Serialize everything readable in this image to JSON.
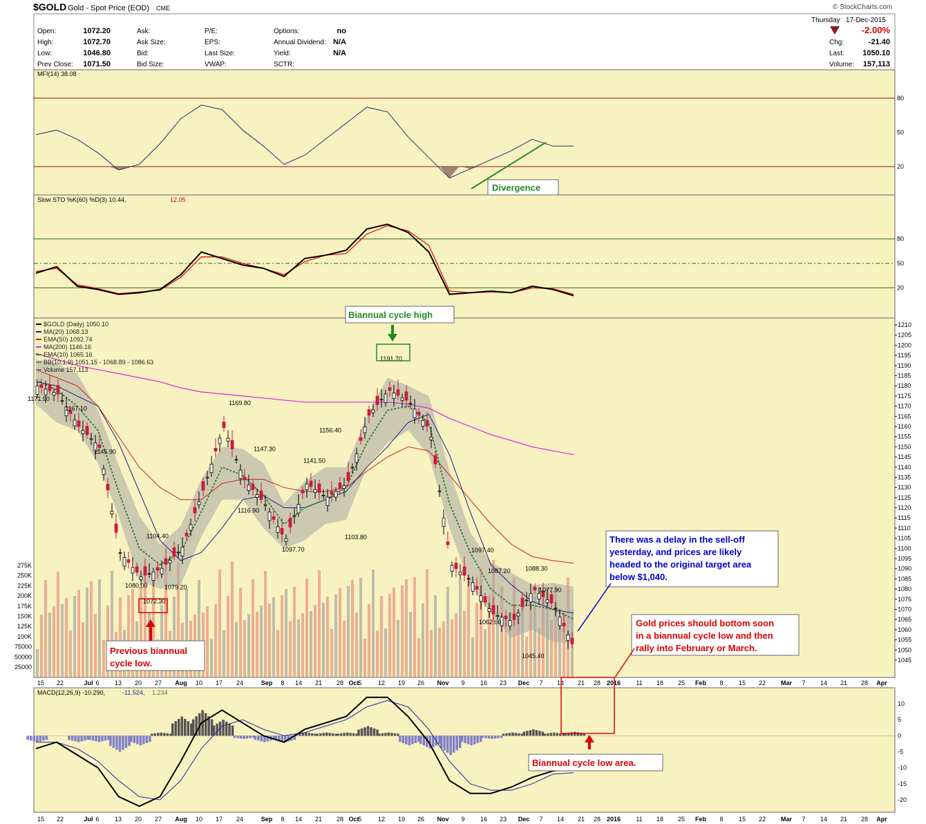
{
  "header": {
    "symbol": "$GOLD",
    "name": "Gold - Spot Price (EOD)",
    "exchange": "CME",
    "brand": "© StockCharts.com",
    "day": "Thursday",
    "date": "17-Dec-2015",
    "change_pct": "-2.00%",
    "fields_left": [
      {
        "label": "Open:",
        "value": "1072.20"
      },
      {
        "label": "High:",
        "value": "1072.70"
      },
      {
        "label": "Low:",
        "value": "1046.80"
      },
      {
        "label": "Prev Close:",
        "value": "1071.50"
      }
    ],
    "fields_mid1": [
      "Ask:",
      "Ask Size:",
      "Bid:",
      "Bid Size:"
    ],
    "fields_mid2": [
      "P/E:",
      "EPS:",
      "Last Size:",
      "VWAP:"
    ],
    "fields_mid3": [
      {
        "label": "Options:",
        "value": "no"
      },
      {
        "label": "Annual Dividend:",
        "value": "N/A"
      },
      {
        "label": "Yield:",
        "value": "N/A"
      },
      {
        "label": "SCTR:",
        "value": ""
      }
    ],
    "fields_right": [
      {
        "label": "Chg:",
        "value": "-21.40"
      },
      {
        "label": "Last:",
        "value": "1050.10"
      },
      {
        "label": "Volume:",
        "value": "157,113"
      }
    ]
  },
  "colors": {
    "panel_bg": "#f7f2c0",
    "up_candle": "#000000",
    "down_candle": "#cc1b3a",
    "ma20": "#1f1f8f",
    "ema50": "#cc2222",
    "ma200": "#dd22dd",
    "ema10": "#2e7d32",
    "bb_fill": "#a8a8a0",
    "volume_up": "#b7b7a7",
    "volume_down": "#eca58f",
    "annotation_red": "#dd0000",
    "annotation_blue": "#0000cc",
    "annotation_green": "#228b22"
  },
  "panels": {
    "mfi": {
      "label": "MFI(14) 38.08",
      "levels": [
        "80",
        "50",
        "20"
      ],
      "annotation": "Divergence"
    },
    "sto": {
      "label_main": "Slow STO %K(60) %D(3) 10.44,",
      "label_d": "12.05",
      "levels": [
        "80",
        "50",
        "20"
      ]
    },
    "price": {
      "legend": [
        "$GOLD (Daily) 1050.10",
        "MA(20) 1068.13",
        "EMA(50) 1092.74",
        "MA(200) 1146.16",
        "EMA(10) 1065.16",
        "BB(10,1.9) 1051.15 - 1068.89 - 1086.63",
        "Volume 157,113"
      ],
      "y_ticks": [
        "1210",
        "1205",
        "1200",
        "1195",
        "1190",
        "1185",
        "1180",
        "1175",
        "1170",
        "1165",
        "1160",
        "1155",
        "1150",
        "1145",
        "1140",
        "1135",
        "1130",
        "1125",
        "1120",
        "1115",
        "1110",
        "1105",
        "1100",
        "1095",
        "1090",
        "1085",
        "1080",
        "1075",
        "1070",
        "1065",
        "1060",
        "1055",
        "1050",
        "1045"
      ],
      "vol_ticks": [
        "275K",
        "250K",
        "225K",
        "200K",
        "175K",
        "150K",
        "125K",
        "100K",
        "75000",
        "50000",
        "25000"
      ],
      "price_labels": [
        "1171.90",
        "1167.10",
        "1145.90",
        "1104.40",
        "1080.00",
        "1079.20",
        "1072.30",
        "1169.80",
        "1147.30",
        "1116.90",
        "1097.70",
        "1141.50",
        "1156.40",
        "1103.80",
        "1191.70",
        "1097.40",
        "1087.20",
        "1062.00",
        "1088.30",
        "1077.90",
        "1045.40"
      ],
      "annotations": {
        "cycle_high": "Biannual cycle high",
        "prev_low": "Previous biannual cycle low.",
        "delay": "There was a delay in the sell-off yesterday, and prices are likely headed to the original target area below $1,040.",
        "bottom": "Gold prices should bottom soon in a biannual cycle low and then rally into February or March."
      }
    },
    "macd": {
      "label_main": "MACD(12,26,9) -10.290,",
      "label_sig": "-11.524,",
      "label_hist": "1.234",
      "y_ticks": [
        "10",
        "5",
        "0",
        "-5",
        "-10",
        "-15",
        "-20"
      ],
      "annotation": "Biannual cycle low area."
    }
  },
  "x_axis": [
    "15",
    "22",
    "Jul",
    "6",
    "13",
    "20",
    "27",
    "Aug",
    "10",
    "17",
    "24",
    "Sep",
    "8",
    "14",
    "21",
    "28",
    "Oct",
    "5",
    "12",
    "19",
    "26",
    "Nov",
    "9",
    "16",
    "23",
    "Dec",
    "7",
    "14",
    "21",
    "28",
    "2016",
    "11",
    "18",
    "25",
    "Feb",
    "8",
    "15",
    "22",
    "Mar",
    "7",
    "14",
    "21",
    "28",
    "Apr"
  ],
  "chart_data": {
    "type": "line",
    "title": "$GOLD Gold - Spot Price (EOD)",
    "price_ylim": [
      1040,
      1212
    ],
    "x": [
      "Jun 15",
      "Jun 22",
      "Jul 6",
      "Jul 13",
      "Jul 20",
      "Jul 27",
      "Aug 3",
      "Aug 10",
      "Aug 17",
      "Aug 24",
      "Aug 31",
      "Sep 8",
      "Sep 14",
      "Sep 21",
      "Sep 28",
      "Oct 5",
      "Oct 12",
      "Oct 19",
      "Oct 26",
      "Nov 2",
      "Nov 9",
      "Nov 16",
      "Nov 23",
      "Nov 30",
      "Dec 7",
      "Dec 14",
      "Dec 17"
    ],
    "series": [
      {
        "name": "$GOLD",
        "values": [
          1180,
          1176,
          1160,
          1150,
          1098,
          1086,
          1090,
          1100,
          1128,
          1160,
          1134,
          1122,
          1104,
          1132,
          1125,
          1132,
          1165,
          1178,
          1172,
          1158,
          1092,
          1084,
          1068,
          1064,
          1080,
          1072,
          1050.1
        ]
      },
      {
        "name": "MA(20)",
        "values": [
          1182,
          1180,
          1175,
          1170,
          1152,
          1128,
          1104,
          1094,
          1098,
          1110,
          1124,
          1126,
          1120,
          1120,
          1124,
          1128,
          1140,
          1150,
          1162,
          1166,
          1146,
          1118,
          1092,
          1082,
          1074,
          1070,
          1068.13
        ]
      },
      {
        "name": "EMA(50)",
        "values": [
          1188,
          1184,
          1180,
          1170,
          1155,
          1140,
          1130,
          1124,
          1124,
          1132,
          1134,
          1134,
          1130,
          1128,
          1128,
          1130,
          1138,
          1145,
          1150,
          1148,
          1136,
          1124,
          1112,
          1102,
          1096,
          1094,
          1092.74
        ]
      },
      {
        "name": "MA(200)",
        "values": [
          1196,
          1193,
          1190,
          1188,
          1186,
          1184,
          1182,
          1179,
          1177,
          1176,
          1175,
          1174,
          1173,
          1172,
          1172,
          1172,
          1172,
          1172,
          1171,
          1169,
          1164,
          1160,
          1156,
          1153,
          1150,
          1148,
          1146.16
        ]
      },
      {
        "name": "EMA(10)",
        "values": [
          1183,
          1178,
          1170,
          1158,
          1128,
          1100,
          1092,
          1098,
          1118,
          1140,
          1136,
          1126,
          1112,
          1120,
          1124,
          1130,
          1152,
          1168,
          1170,
          1162,
          1122,
          1098,
          1080,
          1072,
          1072,
          1070,
          1065.16
        ]
      }
    ],
    "mfi": {
      "name": "MFI(14)",
      "ylim": [
        0,
        100
      ],
      "values": [
        48,
        52,
        44,
        32,
        17,
        22,
        40,
        62,
        74,
        70,
        52,
        38,
        22,
        30,
        44,
        58,
        72,
        68,
        46,
        28,
        10,
        18,
        26,
        34,
        44,
        38,
        38.08
      ]
    },
    "sto": {
      "name": "Slow STO %K(60) %D(3)",
      "ylim": [
        0,
        100
      ],
      "k": [
        38,
        46,
        22,
        18,
        12,
        14,
        18,
        36,
        64,
        56,
        48,
        44,
        34,
        56,
        60,
        66,
        92,
        98,
        88,
        64,
        12,
        14,
        16,
        14,
        22,
        18,
        10.44
      ],
      "d": [
        40,
        44,
        24,
        19,
        13,
        15,
        17,
        33,
        58,
        58,
        50,
        44,
        36,
        52,
        60,
        62,
        86,
        96,
        90,
        72,
        16,
        14,
        15,
        14,
        20,
        19,
        12.05
      ]
    },
    "macd": {
      "name": "MACD(12,26,9)",
      "ylim": [
        -22,
        14
      ],
      "macd": [
        -4,
        -2,
        -6,
        -10,
        -19,
        -22,
        -19,
        -8,
        4,
        8,
        4,
        0,
        -2,
        2,
        4,
        6,
        12,
        12,
        6,
        -2,
        -14,
        -18,
        -18,
        -16,
        -13,
        -11,
        -10.29
      ],
      "signal": [
        -2,
        -2,
        -4,
        -8,
        -14,
        -19,
        -20,
        -14,
        -4,
        3,
        5,
        2,
        0,
        1,
        3,
        5,
        9,
        11,
        9,
        2,
        -8,
        -15,
        -17,
        -17,
        -15,
        -12,
        -11.524
      ],
      "histogram": [
        -2,
        0,
        -2,
        -2,
        -5,
        -3,
        1,
        6,
        8,
        5,
        -1,
        -2,
        -2,
        1,
        1,
        1,
        3,
        1,
        -3,
        -4,
        -6,
        -3,
        -1,
        1,
        2,
        1,
        1.234
      ]
    }
  }
}
